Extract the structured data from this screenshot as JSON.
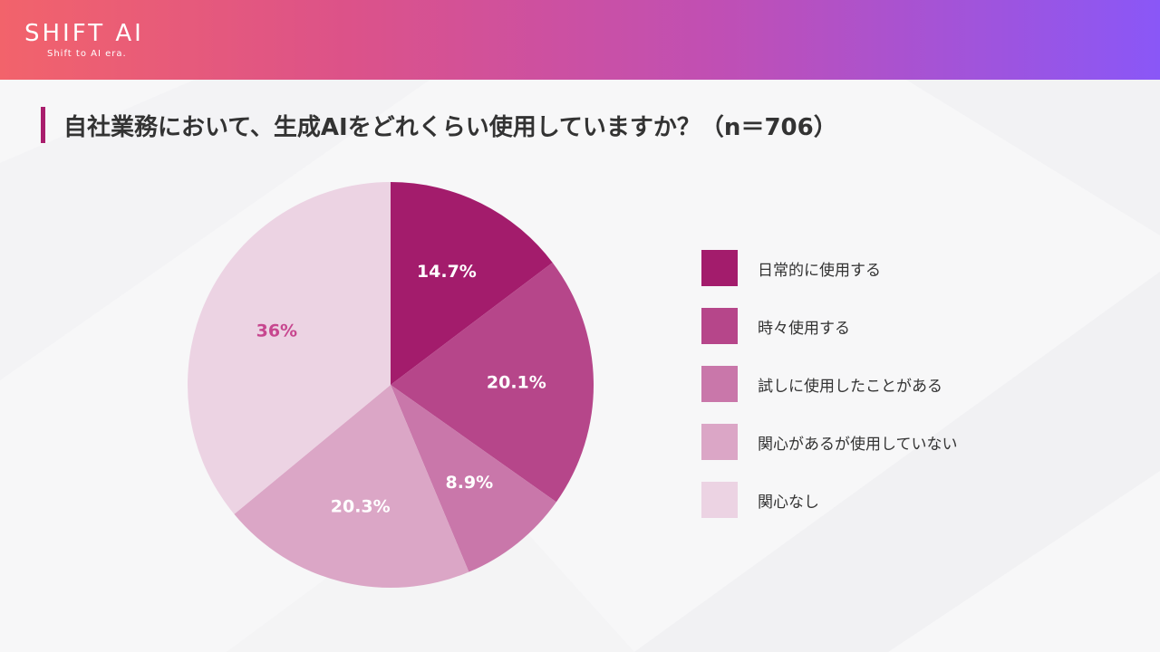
{
  "header": {
    "logo_title": "SHIFT AI",
    "logo_sub": "Shift to AI era."
  },
  "title": "自社業務において、生成AIをどれくらい使用していますか？（n＝706）",
  "colors": {
    "accent": "#a91e6d",
    "header_gradient": [
      "#f2636b",
      "#dc5289",
      "#c04fb4",
      "#8a57f7"
    ]
  },
  "chart_data": {
    "type": "pie",
    "title": "自社業務において、生成AIをどれくらい使用していますか？（n＝706）",
    "legend_position": "right",
    "slices": [
      {
        "label": "日常的に使用する",
        "value": 14.7,
        "display": "14.7%",
        "color": "#a31c6c",
        "label_color": "#ffffff"
      },
      {
        "label": "時々使用する",
        "value": 20.1,
        "display": "20.1%",
        "color": "#b6468a",
        "label_color": "#ffffff"
      },
      {
        "label": "試しに使用したことがある",
        "value": 8.9,
        "display": "8.9%",
        "color": "#c977aa",
        "label_color": "#ffffff"
      },
      {
        "label": "関心があるが使用していない",
        "value": 20.3,
        "display": "20.3%",
        "color": "#dba6c6",
        "label_color": "#ffffff"
      },
      {
        "label": "関心なし",
        "value": 36,
        "display": "36%",
        "color": "#ecd3e3",
        "label_color": "#c7468f"
      }
    ]
  }
}
